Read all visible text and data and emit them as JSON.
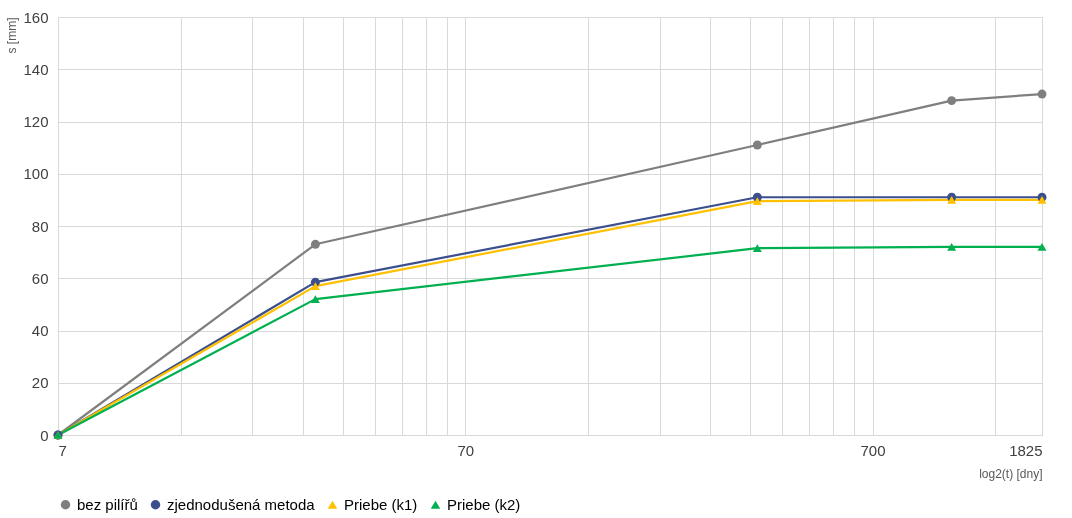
{
  "chart_data": {
    "type": "line",
    "xlabel": "log2(t) [dny]",
    "ylabel": "s [mm]",
    "log": "x",
    "x": [
      7,
      30,
      365,
      1095,
      1825
    ],
    "xlim": [
      7,
      1825
    ],
    "xticks": [
      7,
      {
        "value": 14,
        "label": null
      },
      {
        "value": 21,
        "label": null
      },
      {
        "value": 28,
        "label": null
      },
      {
        "value": 35,
        "label": null
      },
      {
        "value": 42,
        "label": null
      },
      {
        "value": 49,
        "label": null
      },
      {
        "value": 56,
        "label": null
      },
      {
        "value": 63,
        "label": null
      },
      70,
      {
        "value": 140,
        "label": null
      },
      {
        "value": 210,
        "label": null
      },
      {
        "value": 280,
        "label": null
      },
      {
        "value": 350,
        "label": null
      },
      {
        "value": 420,
        "label": null
      },
      {
        "value": 490,
        "label": null
      },
      {
        "value": 560,
        "label": null
      },
      {
        "value": 630,
        "label": null
      },
      700,
      {
        "value": 1400,
        "label": null
      },
      1825
    ],
    "ylim": [
      0,
      160
    ],
    "yticks": [
      0,
      20,
      40,
      60,
      80,
      100,
      120,
      140,
      160
    ],
    "grid": true,
    "legend": "bottom",
    "series": [
      {
        "name": "bez pilířů",
        "color": "#7f7f7f",
        "marker": "circle",
        "values": [
          0,
          73,
          111,
          128,
          130.5
        ]
      },
      {
        "name": "zjednodušená metoda",
        "color": "#3b4f8c",
        "marker": "circle",
        "values": [
          0,
          58.5,
          91,
          91,
          91
        ]
      },
      {
        "name": "Priebe (k1)",
        "color": "#ffc000",
        "marker": "triangle",
        "values": [
          0,
          57,
          89.5,
          90,
          90
        ]
      },
      {
        "name": "Priebe (k2)",
        "color": "#00b050",
        "marker": "triangle",
        "values": [
          0,
          52,
          71.5,
          72,
          72
        ]
      }
    ]
  }
}
